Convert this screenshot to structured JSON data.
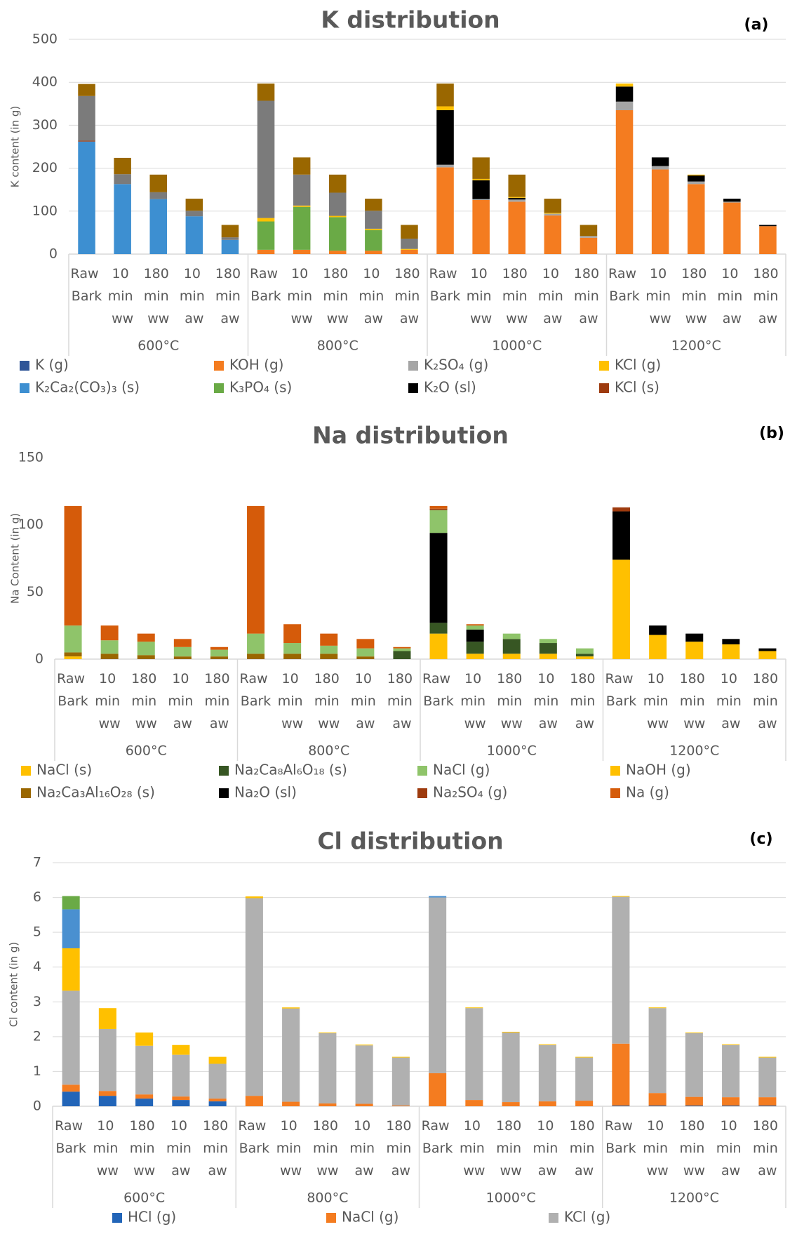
{
  "chart_data": [
    {
      "type": "bar",
      "stacked": true,
      "title": "K distribution",
      "annotation": "(a)",
      "y_label": "K content (in g)",
      "categories": [
        "Raw Bark",
        "10 min ww",
        "180 min ww",
        "10 min aw",
        "180 min aw",
        "Raw Bark",
        "10 min ww",
        "180 min ww",
        "10 min aw",
        "180 min aw",
        "Raw Bark",
        "10 min ww",
        "180 min ww",
        "10 min aw",
        "180 min aw",
        "Raw Bark",
        "10 min ww",
        "180 min ww",
        "10 min aw",
        "180 min aw"
      ],
      "groups": [
        "600°C",
        "800°C",
        "1000°C",
        "1200°C"
      ],
      "ylim": [
        0,
        500
      ],
      "yticks": [
        0,
        100,
        200,
        300,
        400,
        500
      ],
      "grid": true,
      "series": [
        {
          "name": "K (g)",
          "color": "#2f5597",
          "values": [
            0,
            0,
            0,
            0,
            0,
            0,
            0,
            0,
            0,
            0,
            0,
            0,
            0,
            0,
            0,
            0,
            0,
            0,
            0,
            0
          ]
        },
        {
          "name": "K₂Ca₂(CO₃)₃ (s)",
          "color": "#3d8fd1",
          "values": [
            262,
            163,
            128,
            88,
            33,
            0,
            0,
            0,
            0,
            0,
            0,
            0,
            0,
            0,
            0,
            0,
            0,
            0,
            0,
            0
          ]
        },
        {
          "name": "KOH (g)",
          "color": "#f47c20",
          "values": [
            0,
            0,
            0,
            0,
            0,
            10,
            10,
            8,
            8,
            10,
            202,
            126,
            122,
            90,
            38,
            335,
            197,
            163,
            120,
            65
          ]
        },
        {
          "name": "K₃PO₄ (s)",
          "color": "#6aaa46",
          "values": [
            0,
            0,
            0,
            0,
            0,
            66,
            100,
            78,
            48,
            0,
            0,
            0,
            0,
            0,
            0,
            0,
            0,
            0,
            0,
            0
          ]
        },
        {
          "name": "K₂SO₄ (g)",
          "color": "#a5a5a5",
          "values": [
            0,
            0,
            0,
            0,
            0,
            0,
            0,
            0,
            0,
            0,
            6,
            2,
            5,
            4,
            4,
            20,
            8,
            6,
            2,
            0
          ]
        },
        {
          "name": "K₂O (sl)",
          "color": "#000000",
          "values": [
            0,
            0,
            0,
            0,
            0,
            0,
            0,
            0,
            0,
            0,
            127,
            44,
            4,
            0,
            0,
            35,
            20,
            14,
            7,
            3
          ]
        },
        {
          "name": "KCl (g)",
          "color": "#ffc000",
          "values": [
            0,
            0,
            0,
            0,
            0,
            8,
            3,
            3,
            3,
            2,
            9,
            3,
            2,
            2,
            0,
            7,
            0,
            2,
            0,
            0
          ]
        },
        {
          "name": "KCl (s)",
          "color": "#9e3b0e",
          "values": [
            2,
            0,
            0,
            0,
            0,
            0,
            0,
            0,
            0,
            0,
            0,
            0,
            0,
            0,
            0,
            0,
            0,
            0,
            0,
            0
          ]
        },
        {
          "name": null,
          "color": "#7b7b7b",
          "values": [
            104,
            23,
            16,
            13,
            6,
            273,
            72,
            54,
            42,
            24,
            0,
            0,
            0,
            0,
            0,
            0,
            0,
            0,
            0,
            0
          ]
        },
        {
          "name": null,
          "color": "#9a6700",
          "values": [
            28,
            38,
            41,
            28,
            29,
            40,
            40,
            42,
            28,
            32,
            53,
            50,
            52,
            33,
            26,
            0,
            0,
            0,
            0,
            0
          ]
        }
      ]
    },
    {
      "type": "bar",
      "stacked": true,
      "title": "Na distribution",
      "annotation": "(b)",
      "y_label": "Na Content (in g)",
      "categories": [
        "Raw Bark",
        "10 min ww",
        "180 min ww",
        "10 min aw",
        "180 min aw",
        "Raw Bark",
        "10 min ww",
        "180 min ww",
        "10 min aw",
        "180 min aw",
        "Raw Bark",
        "10 min ww",
        "180 min ww",
        "10 min aw",
        "180 min aw",
        "Raw Bark",
        "10 min ww",
        "180 min ww",
        "10 min aw",
        "180 min aw"
      ],
      "groups": [
        "600°C",
        "800°C",
        "1000°C",
        "1200°C"
      ],
      "ylim": [
        0,
        150
      ],
      "yticks": [
        0,
        50,
        100,
        150
      ],
      "grid": false,
      "series": [
        {
          "name": "NaCl (s)",
          "color": "#ffc000",
          "values": [
            2,
            0,
            0,
            0,
            0,
            0,
            0,
            0,
            0,
            0,
            19,
            4,
            4,
            4,
            2,
            74,
            18,
            13,
            11,
            6
          ]
        },
        {
          "name": "Na₂Ca₃Al₁₆O₂₈ (s)",
          "color": "#9a6700",
          "values": [
            3,
            4,
            3,
            2,
            2,
            4,
            4,
            4,
            2,
            0,
            0,
            0,
            0,
            0,
            0,
            0,
            0,
            0,
            0,
            0
          ]
        },
        {
          "name": "Na₂Ca₈Al₆O₁₈ (s)",
          "color": "#375623",
          "values": [
            0,
            0,
            0,
            0,
            0,
            0,
            0,
            0,
            0,
            6,
            8,
            9,
            11,
            8,
            2,
            0,
            0,
            0,
            0,
            0
          ]
        },
        {
          "name": "Na₂O (sl)",
          "color": "#000000",
          "values": [
            0,
            0,
            0,
            0,
            0,
            0,
            0,
            0,
            0,
            0,
            67,
            9,
            0,
            0,
            0,
            36,
            7,
            6,
            4,
            2
          ]
        },
        {
          "name": "NaCl (g)",
          "color": "#8fc46a",
          "values": [
            20,
            10,
            10,
            7,
            5,
            15,
            8,
            6,
            6,
            2,
            17,
            3,
            4,
            3,
            4,
            0,
            0,
            0,
            0,
            0
          ]
        },
        {
          "name": "Na₂SO₄ (g)",
          "color": "#9e3b0e",
          "values": [
            0,
            0,
            0,
            0,
            0,
            0,
            0,
            0,
            0,
            0,
            1,
            0,
            0,
            0,
            0,
            3,
            0,
            0,
            0,
            0
          ]
        },
        {
          "name": "NaOH (g)",
          "color": "#ffc000",
          "values": [
            0,
            0,
            0,
            0,
            0,
            0,
            0,
            0,
            0,
            0,
            0,
            0,
            0,
            0,
            0,
            0,
            0,
            0,
            0,
            0
          ]
        },
        {
          "name": "Na (g)",
          "color": "#d55b0a",
          "values": [
            89,
            11,
            6,
            6,
            2,
            95,
            14,
            9,
            7,
            1,
            2,
            1,
            0,
            0,
            0,
            0,
            0,
            0,
            0,
            0
          ]
        }
      ]
    },
    {
      "type": "bar",
      "stacked": true,
      "title": "Cl distribution",
      "annotation": "(c)",
      "y_label": "Cl content (in g)",
      "categories": [
        "Raw Bark",
        "10 min ww",
        "180 min ww",
        "10 min aw",
        "180 min aw",
        "Raw Bark",
        "10 min ww",
        "180 min ww",
        "10 min aw",
        "180 min aw",
        "Raw Bark",
        "10 min ww",
        "180 min ww",
        "10 min aw",
        "180 min aw",
        "Raw Bark",
        "10 min ww",
        "180 min ww",
        "10 min aw",
        "180 min aw"
      ],
      "groups": [
        "600°C",
        "800°C",
        "1000°C",
        "1200°C"
      ],
      "ylim": [
        0,
        7
      ],
      "yticks": [
        0,
        1,
        2,
        3,
        4,
        5,
        6,
        7
      ],
      "grid": true,
      "series": [
        {
          "name": "HCl (g)",
          "color": "#2265b8",
          "values": [
            0.42,
            0.3,
            0.22,
            0.18,
            0.14,
            0,
            0,
            0,
            0,
            0,
            0,
            0,
            0,
            0,
            0,
            0.02,
            0.02,
            0.02,
            0.02,
            0.02
          ]
        },
        {
          "name": "NaCl (g)",
          "color": "#f47c20",
          "values": [
            0.2,
            0.14,
            0.12,
            0.1,
            0.08,
            0.3,
            0.13,
            0.08,
            0.07,
            0.02,
            0.95,
            0.18,
            0.12,
            0.14,
            0.16,
            1.78,
            0.36,
            0.25,
            0.24,
            0.24
          ]
        },
        {
          "name": "KCl (g)",
          "color": "#b0b0b0",
          "values": [
            2.7,
            1.78,
            1.4,
            1.2,
            1.0,
            5.68,
            2.68,
            2.02,
            1.68,
            1.38,
            5.05,
            2.64,
            2.0,
            1.62,
            1.24,
            4.22,
            2.44,
            1.83,
            1.5,
            1.14
          ]
        },
        {
          "name": null,
          "color": "#ffc000",
          "values": [
            1.22,
            0.6,
            0.38,
            0.28,
            0.2,
            0.05,
            0.03,
            0.02,
            0.02,
            0.02,
            0,
            0.02,
            0.02,
            0.02,
            0.02,
            0.02,
            0.02,
            0.02,
            0.02,
            0.02
          ]
        },
        {
          "name": null,
          "color": "#4a90d0",
          "values": [
            1.12,
            0,
            0,
            0,
            0,
            0,
            0,
            0,
            0,
            0,
            0.04,
            0,
            0,
            0,
            0,
            0,
            0,
            0,
            0,
            0
          ]
        },
        {
          "name": null,
          "color": "#6aaa46",
          "values": [
            0.38,
            0,
            0,
            0,
            0,
            0,
            0,
            0,
            0,
            0,
            0,
            0,
            0,
            0,
            0,
            0,
            0,
            0,
            0,
            0
          ]
        }
      ]
    }
  ]
}
